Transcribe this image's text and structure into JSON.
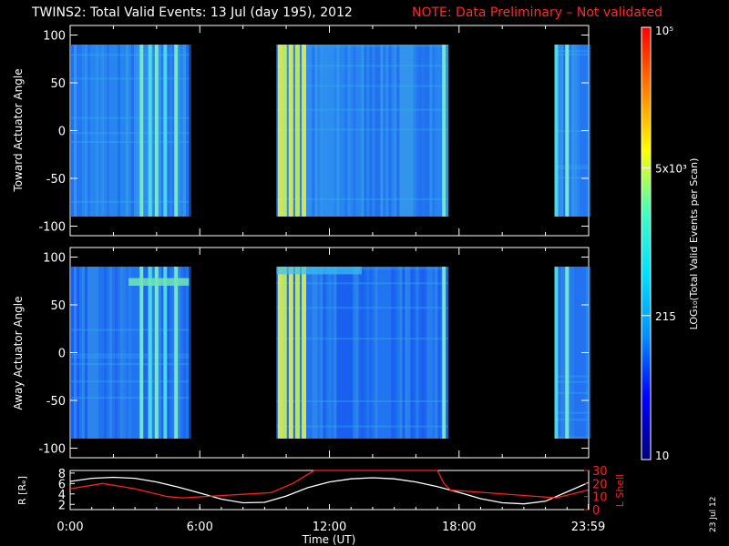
{
  "header": {
    "title": "TWINS2: Total Valid Events: 13 Jul (day 195), 2012",
    "note": "NOTE: Data Preliminary – Not validated"
  },
  "stamp": "23 Jul 12",
  "chart_data": [
    {
      "type": "heatmap",
      "ylabel": "Toward Actuator Angle",
      "ylim": [
        -110,
        110
      ],
      "yticks": [
        "100",
        "50",
        "0",
        "-50",
        "-100"
      ],
      "data_y_range": [
        -90,
        90
      ],
      "data_segments_hours": [
        [
          0.0,
          5.5
        ],
        [
          9.55,
          17.5
        ],
        [
          22.45,
          23.98
        ]
      ],
      "bright_columns_hours": [
        3.3,
        3.7,
        4.0,
        4.4,
        4.9,
        9.7,
        9.9,
        10.2,
        10.5,
        10.8,
        17.3,
        22.5,
        23.0
      ]
    },
    {
      "type": "heatmap",
      "ylabel": "Away Actuator Angle",
      "ylim": [
        -110,
        110
      ],
      "yticks": [
        "100",
        "50",
        "0",
        "-50",
        "-100"
      ],
      "data_y_range": [
        -90,
        90
      ],
      "data_segments_hours": [
        [
          0.0,
          5.5
        ],
        [
          9.55,
          17.5
        ],
        [
          22.45,
          23.98
        ]
      ],
      "bright_columns_hours": [
        3.3,
        3.7,
        4.0,
        4.4,
        4.9,
        9.7,
        9.9,
        10.2,
        10.5,
        10.8,
        17.3,
        22.5,
        23.0
      ]
    },
    {
      "type": "line",
      "xlabel": "Time (UT)",
      "xlim": [
        0,
        24
      ],
      "xticks": [
        "0:00",
        "6:00",
        "12:00",
        "18:00",
        "23:59"
      ],
      "left_axis": {
        "label": "R [Rₑ]",
        "ylim": [
          1,
          8.5
        ],
        "yticks": [
          "8",
          "6",
          "4",
          "2"
        ]
      },
      "right_axis": {
        "label": "L Shell",
        "ylim": [
          0,
          30
        ],
        "yticks": [
          "30",
          "20",
          "10",
          "0"
        ]
      },
      "series": [
        {
          "name": "R [Rₑ]",
          "axis": "left",
          "color": "#ffffff",
          "x": [
            0,
            1,
            2,
            3,
            4,
            5,
            6,
            7,
            8,
            9,
            10,
            11,
            12,
            13,
            14,
            15,
            16,
            17,
            18,
            19,
            20,
            21,
            22,
            23,
            24
          ],
          "y": [
            6.4,
            7.0,
            7.2,
            7.0,
            6.3,
            5.3,
            4.2,
            3.0,
            2.3,
            2.4,
            3.6,
            5.2,
            6.3,
            6.9,
            7.1,
            6.9,
            6.3,
            5.4,
            4.3,
            3.1,
            2.3,
            2.1,
            2.6,
            4.4,
            6.2
          ]
        },
        {
          "name": "L Shell",
          "axis": "right",
          "color": "#ff2020",
          "x": [
            0,
            1.5,
            3,
            4.5,
            5.2,
            9.3,
            10.3,
            11.0,
            11.3,
            17.0,
            17.3,
            17.6,
            22.5,
            23.98
          ],
          "y": [
            16,
            20,
            16,
            10,
            9,
            13,
            20,
            27,
            30,
            30,
            20,
            15,
            9,
            15
          ]
        }
      ]
    }
  ],
  "colorbar": {
    "label": "LOG₁₀(Total Valid Events per Scan)",
    "ticks": [
      "10⁵",
      "5x10³",
      "215",
      "10"
    ],
    "tick_values": [
      100000,
      5000,
      215,
      10
    ],
    "range": [
      10,
      100000
    ],
    "scale": "log",
    "colors": [
      "#00007a",
      "#0000ff",
      "#0090ff",
      "#00e0ff",
      "#40ffc0",
      "#ffff00",
      "#ff8000",
      "#ff0000"
    ]
  }
}
